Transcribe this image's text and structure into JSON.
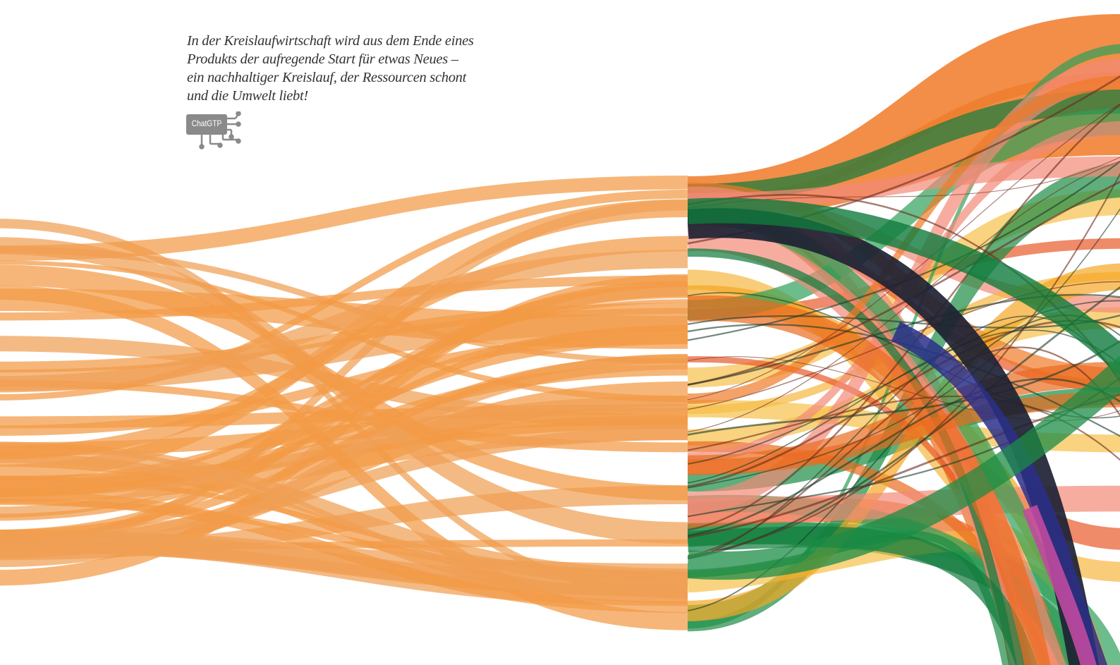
{
  "quote": {
    "lines": [
      "In der Kreislaufwirtschaft wird aus dem Ende eines",
      "Produkts der aufregende Start für etwas Neues –",
      "ein nachhaltiger Kreislauf, der Ressourcen schont",
      "und die Umwelt liebt!"
    ]
  },
  "badge": {
    "label": "ChatGTP"
  }
}
